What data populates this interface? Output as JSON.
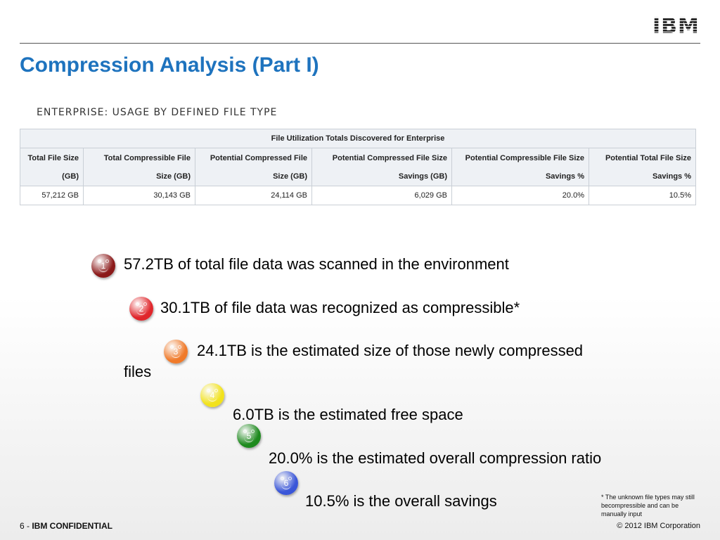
{
  "header": {
    "logo_text": "IBM"
  },
  "title": "Compression Analysis (Part I)",
  "section_label": "ENTERPRISE: USAGE BY DEFINED FILE TYPE",
  "table": {
    "caption": "File Utilization Totals Discovered for Enterprise",
    "columns": [
      {
        "line1": "Total File Size",
        "line2": "(GB)"
      },
      {
        "line1": "Total Compressible File",
        "line2": "Size (GB)"
      },
      {
        "line1": "Potential Compressed File",
        "line2": "Size (GB)"
      },
      {
        "line1": "Potential Compressed File Size",
        "line2": "Savings (GB)"
      },
      {
        "line1": "Potential Compressible File Size",
        "line2": "Savings %"
      },
      {
        "line1": "Potential Total File Size",
        "line2": "Savings %"
      }
    ],
    "values": [
      "57,212 GB",
      "30,143 GB",
      "24,114 GB",
      "6,029 GB",
      "20.0%",
      "10.5%"
    ]
  },
  "points": [
    {
      "num": "1",
      "color": "#8b1a1a",
      "text": "57.2TB of total file data was scanned in the environment"
    },
    {
      "num": "2",
      "color": "#e0262b",
      "text": "30.1TB of file data was recognized as compressible*"
    },
    {
      "num": "3",
      "color": "#f07a2a",
      "text": "24.1TB is the estimated size of those newly compressed",
      "text2": "files"
    },
    {
      "num": "4",
      "color": "#f2e21c",
      "text": "6.0TB is the estimated free space"
    },
    {
      "num": "5",
      "color": "#1e8a1e",
      "text": "20.0% is the estimated overall compression ratio"
    },
    {
      "num": "6",
      "color": "#3a56d8",
      "text": "10.5% is the overall savings"
    }
  ],
  "footnote": "* The unknown file types may still  becompressible and can be manually input",
  "footer": {
    "page": "6 - ",
    "confidential": "IBM CONFIDENTIAL",
    "copyright": "© 2012 IBM Corporation"
  }
}
